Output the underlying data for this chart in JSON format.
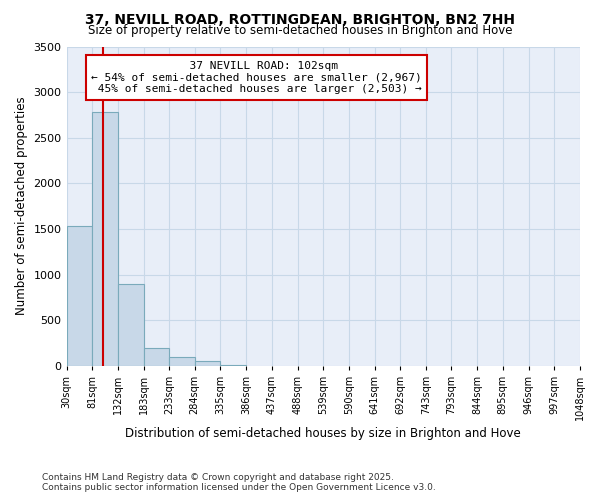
{
  "title_line1": "37, NEVILL ROAD, ROTTINGDEAN, BRIGHTON, BN2 7HH",
  "title_line2": "Size of property relative to semi-detached houses in Brighton and Hove",
  "xlabel": "Distribution of semi-detached houses by size in Brighton and Hove",
  "ylabel": "Number of semi-detached properties",
  "bin_edges": [
    30,
    81,
    132,
    183,
    233,
    284,
    335,
    386,
    437,
    488,
    539,
    590,
    641,
    692,
    743,
    793,
    844,
    895,
    946,
    997,
    1048
  ],
  "bin_labels": [
    "30sqm",
    "81sqm",
    "132sqm",
    "183sqm",
    "233sqm",
    "284sqm",
    "335sqm",
    "386sqm",
    "437sqm",
    "488sqm",
    "539sqm",
    "590sqm",
    "641sqm",
    "692sqm",
    "743sqm",
    "793sqm",
    "844sqm",
    "895sqm",
    "946sqm",
    "997sqm",
    "1048sqm"
  ],
  "values": [
    1530,
    2780,
    900,
    200,
    100,
    50,
    10,
    0,
    0,
    0,
    0,
    0,
    0,
    0,
    0,
    0,
    0,
    0,
    0,
    0
  ],
  "bar_color": "#c8d8e8",
  "bar_edge_color": "#7aaabb",
  "property_size": 102,
  "property_label": "37 NEVILL ROAD: 102sqm",
  "pct_smaller": 54,
  "pct_smaller_count": 2967,
  "pct_larger": 45,
  "pct_larger_count": 2503,
  "vline_color": "#cc0000",
  "annotation_box_color": "#cc0000",
  "ylim": [
    0,
    3500
  ],
  "yticks": [
    0,
    500,
    1000,
    1500,
    2000,
    2500,
    3000,
    3500
  ],
  "grid_color": "#c8d8e8",
  "background_color": "#e8eef8",
  "footer_line1": "Contains HM Land Registry data © Crown copyright and database right 2025.",
  "footer_line2": "Contains public sector information licensed under the Open Government Licence v3.0."
}
